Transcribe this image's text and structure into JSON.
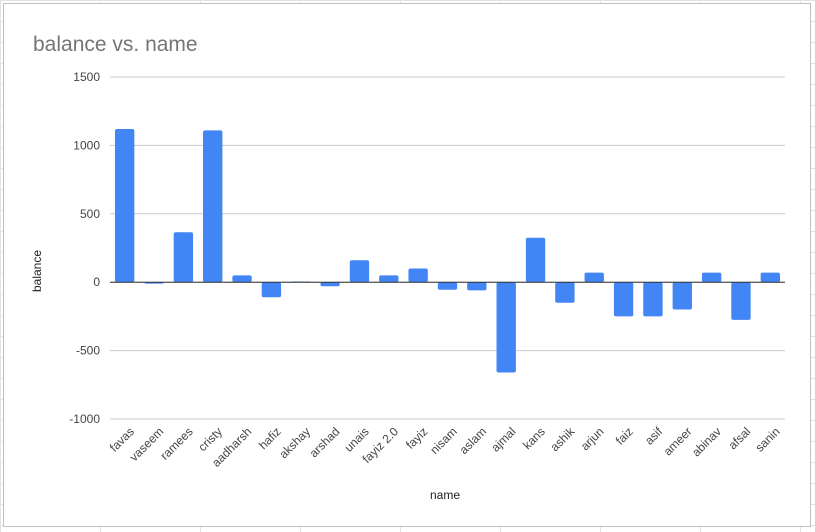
{
  "chart_data": {
    "type": "bar",
    "title": "balance vs. name",
    "xlabel": "name",
    "ylabel": "balance",
    "ylim": [
      -1000,
      1500
    ],
    "yticks": [
      1500,
      1000,
      500,
      0,
      -500,
      -1000
    ],
    "grid": true,
    "legend": "none",
    "bar_color": "#4285f4",
    "categories": [
      "favas",
      "vaseem",
      "ramees",
      "cristy",
      "aadharsh",
      "hafiz",
      "akshay",
      "arshad",
      "unais",
      "fayiz 2.0",
      "fayiz",
      "nisam",
      "aslam",
      "ajmal",
      "kans",
      "ashik",
      "arjun",
      "faiz",
      "asif",
      "ameer",
      "abinav",
      "afsal",
      "sanin"
    ],
    "values": [
      1120,
      -10,
      365,
      1110,
      50,
      -110,
      5,
      -30,
      160,
      50,
      100,
      -55,
      -60,
      -660,
      325,
      -150,
      70,
      -250,
      -250,
      -200,
      70,
      -275,
      70
    ]
  }
}
